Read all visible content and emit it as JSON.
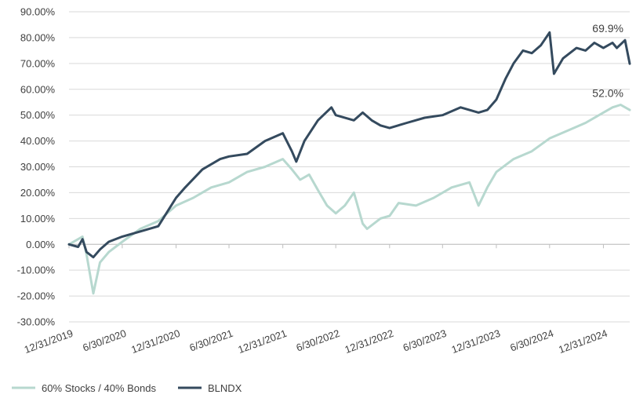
{
  "chart_data": {
    "type": "line",
    "title": "",
    "xlabel": "",
    "ylabel": "",
    "ylim": [
      -30,
      90
    ],
    "yticks": [
      90,
      80,
      70,
      60,
      50,
      40,
      30,
      20,
      10,
      0,
      -10,
      -20,
      -30
    ],
    "ytick_labels": [
      "90.00%",
      "80.00%",
      "70.00%",
      "60.00%",
      "50.00%",
      "40.00%",
      "30.00%",
      "20.00%",
      "10.00%",
      "0.00%",
      "-10.00%",
      "-20.00%",
      "-30.00%"
    ],
    "xlim": [
      "2019-12-31",
      "2025-03-31"
    ],
    "xticks": [
      "2019-12-31",
      "2020-06-30",
      "2020-12-31",
      "2021-06-30",
      "2021-12-31",
      "2022-06-30",
      "2022-12-31",
      "2023-06-30",
      "2023-12-31",
      "2024-06-30",
      "2024-12-31"
    ],
    "xtick_labels": [
      "12/31/2019",
      "6/30/2020",
      "12/31/2020",
      "6/30/2021",
      "12/31/2021",
      "6/30/2022",
      "12/31/2022",
      "6/30/2023",
      "12/31/2023",
      "6/30/2024",
      "12/31/2024"
    ],
    "grid": "horizontal",
    "legend": "bottom-left",
    "series": [
      {
        "name": "60% Stocks / 40% Bonds",
        "color": "#b7d8cf",
        "end_label": "52.0%",
        "points": [
          [
            "2019-12-31",
            0
          ],
          [
            "2020-01-31",
            2
          ],
          [
            "2020-02-15",
            3
          ],
          [
            "2020-02-29",
            -4
          ],
          [
            "2020-03-23",
            -19
          ],
          [
            "2020-04-15",
            -7
          ],
          [
            "2020-05-15",
            -3
          ],
          [
            "2020-06-30",
            1
          ],
          [
            "2020-08-31",
            6
          ],
          [
            "2020-10-31",
            9
          ],
          [
            "2020-12-31",
            15
          ],
          [
            "2021-02-28",
            18
          ],
          [
            "2021-04-30",
            22
          ],
          [
            "2021-06-30",
            24
          ],
          [
            "2021-08-31",
            28
          ],
          [
            "2021-10-31",
            30
          ],
          [
            "2021-12-31",
            33
          ],
          [
            "2022-01-31",
            29
          ],
          [
            "2022-02-28",
            25
          ],
          [
            "2022-03-31",
            27
          ],
          [
            "2022-04-30",
            21
          ],
          [
            "2022-05-31",
            15
          ],
          [
            "2022-06-30",
            12
          ],
          [
            "2022-07-31",
            15
          ],
          [
            "2022-08-31",
            20
          ],
          [
            "2022-09-30",
            8
          ],
          [
            "2022-10-15",
            6
          ],
          [
            "2022-11-30",
            10
          ],
          [
            "2022-12-31",
            11
          ],
          [
            "2023-01-31",
            16
          ],
          [
            "2023-03-31",
            15
          ],
          [
            "2023-05-31",
            18
          ],
          [
            "2023-07-31",
            22
          ],
          [
            "2023-09-30",
            24
          ],
          [
            "2023-10-31",
            15
          ],
          [
            "2023-11-30",
            22
          ],
          [
            "2023-12-31",
            28
          ],
          [
            "2024-02-28",
            33
          ],
          [
            "2024-04-30",
            36
          ],
          [
            "2024-06-30",
            41
          ],
          [
            "2024-08-31",
            44
          ],
          [
            "2024-10-31",
            47
          ],
          [
            "2024-12-31",
            51
          ],
          [
            "2025-01-31",
            53
          ],
          [
            "2025-02-28",
            54
          ],
          [
            "2025-03-31",
            52
          ]
        ]
      },
      {
        "name": "BLNDX",
        "color": "#344a5e",
        "end_label": "69.9%",
        "points": [
          [
            "2019-12-31",
            0
          ],
          [
            "2020-01-31",
            -1
          ],
          [
            "2020-02-15",
            2
          ],
          [
            "2020-02-29",
            -3
          ],
          [
            "2020-03-23",
            -5
          ],
          [
            "2020-04-15",
            -2
          ],
          [
            "2020-05-15",
            1
          ],
          [
            "2020-06-30",
            3
          ],
          [
            "2020-08-31",
            5
          ],
          [
            "2020-10-31",
            7
          ],
          [
            "2020-12-31",
            18
          ],
          [
            "2021-01-31",
            22
          ],
          [
            "2021-03-31",
            29
          ],
          [
            "2021-05-31",
            33
          ],
          [
            "2021-06-30",
            34
          ],
          [
            "2021-08-31",
            35
          ],
          [
            "2021-10-31",
            40
          ],
          [
            "2021-12-31",
            43
          ],
          [
            "2022-01-31",
            36
          ],
          [
            "2022-02-15",
            32
          ],
          [
            "2022-03-15",
            40
          ],
          [
            "2022-04-30",
            48
          ],
          [
            "2022-06-15",
            53
          ],
          [
            "2022-06-30",
            50
          ],
          [
            "2022-08-31",
            48
          ],
          [
            "2022-09-30",
            51
          ],
          [
            "2022-10-31",
            48
          ],
          [
            "2022-11-30",
            46
          ],
          [
            "2022-12-31",
            45
          ],
          [
            "2023-02-28",
            47
          ],
          [
            "2023-04-30",
            49
          ],
          [
            "2023-06-30",
            50
          ],
          [
            "2023-08-31",
            53
          ],
          [
            "2023-10-31",
            51
          ],
          [
            "2023-11-30",
            52
          ],
          [
            "2023-12-31",
            56
          ],
          [
            "2024-01-31",
            64
          ],
          [
            "2024-02-28",
            70
          ],
          [
            "2024-03-31",
            75
          ],
          [
            "2024-04-30",
            74
          ],
          [
            "2024-05-31",
            77
          ],
          [
            "2024-06-30",
            82
          ],
          [
            "2024-07-15",
            66
          ],
          [
            "2024-08-15",
            72
          ],
          [
            "2024-09-30",
            76
          ],
          [
            "2024-10-31",
            75
          ],
          [
            "2024-11-30",
            78
          ],
          [
            "2024-12-31",
            76
          ],
          [
            "2025-01-31",
            78
          ],
          [
            "2025-02-15",
            76
          ],
          [
            "2025-03-15",
            79
          ],
          [
            "2025-03-31",
            69.9
          ]
        ]
      }
    ]
  }
}
